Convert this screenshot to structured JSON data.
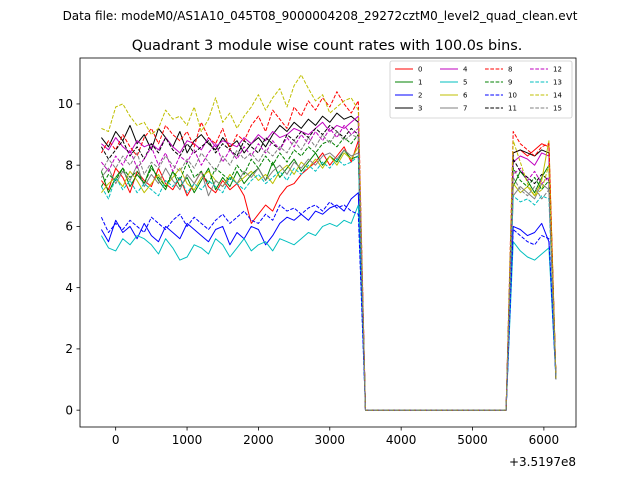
{
  "suptitle": "Data file: modeM0/AS1A10_045T08_9000004208_29272cztM0_level2_quad_clean.evt",
  "chart_data": {
    "type": "line",
    "title": "Quadrant 3 module wise count rates with 100.0s bins.",
    "xlabel": "",
    "ylabel": "",
    "x_offset_label": "+3.5197e8",
    "xlim": [
      -500,
      6450
    ],
    "ylim": [
      -0.55,
      11.5
    ],
    "xticks": [
      0,
      1000,
      2000,
      3000,
      4000,
      5000,
      6000
    ],
    "xtick_labels": [
      "0",
      "1000",
      "2000",
      "3000",
      "4000",
      "5000",
      "6000"
    ],
    "yticks": [
      0,
      2,
      4,
      6,
      8,
      10
    ],
    "ytick_labels": [
      "0",
      "2",
      "4",
      "6",
      "8",
      "10"
    ],
    "legend_position": "top-right",
    "legend_columns": 4,
    "segments": [
      {
        "start": -200,
        "step": 100,
        "count": 37
      },
      {
        "start": 5570,
        "step": 100,
        "count": 6
      }
    ],
    "gap_level": 0,
    "series": [
      {
        "name": "0",
        "color": "#ff0000",
        "dash": false,
        "first": [
          7.5,
          7.2,
          7.9,
          7.6,
          7.1,
          7.8,
          7.5,
          7.3,
          7.9,
          7.4,
          7.2,
          7.6,
          7.0,
          7.4,
          7.8,
          7.3,
          7.1,
          7.5,
          7.2,
          7.4,
          7.0,
          6.1,
          6.4,
          6.7,
          6.5,
          7.0,
          7.3,
          7.4,
          7.7,
          7.9,
          8.1,
          8.4,
          8.0,
          8.3,
          8.6,
          8.1,
          8.8
        ],
        "second": [
          8.4,
          8.5,
          8.3,
          8.5,
          8.7,
          8.6
        ]
      },
      {
        "name": "1",
        "color": "#008000",
        "dash": false,
        "first": [
          7.8,
          7.1,
          7.6,
          7.9,
          7.3,
          7.7,
          7.4,
          8.0,
          7.5,
          7.2,
          7.8,
          7.3,
          7.6,
          7.1,
          7.5,
          7.9,
          7.2,
          7.6,
          7.3,
          7.8,
          7.4,
          7.7,
          7.9,
          7.5,
          8.1,
          7.6,
          7.9,
          8.2,
          7.8,
          8.1,
          8.4,
          8.0,
          8.3,
          8.1,
          8.5,
          8.2,
          8.3
        ],
        "second": [
          7.3,
          7.8,
          7.5,
          7.1,
          7.6,
          8.0
        ]
      },
      {
        "name": "2",
        "color": "#0000ff",
        "dash": false,
        "first": [
          5.9,
          5.5,
          6.2,
          5.8,
          6.0,
          5.6,
          6.1,
          5.7,
          5.5,
          6.0,
          5.8,
          5.6,
          6.1,
          5.9,
          5.7,
          5.5,
          5.9,
          6.0,
          5.4,
          5.8,
          5.6,
          6.0,
          5.9,
          5.4,
          5.7,
          6.1,
          6.3,
          6.2,
          6.4,
          6.2,
          6.5,
          6.4,
          6.6,
          6.7,
          6.5,
          6.9,
          7.1
        ],
        "second": [
          6.0,
          5.9,
          5.7,
          5.8,
          6.1,
          5.5
        ]
      },
      {
        "name": "3",
        "color": "#000000",
        "dash": false,
        "first": [
          8.9,
          8.6,
          9.1,
          8.8,
          9.3,
          8.7,
          9.0,
          8.5,
          9.2,
          8.9,
          8.6,
          9.1,
          8.4,
          8.8,
          9.0,
          8.7,
          8.5,
          8.9,
          8.6,
          8.8,
          8.4,
          8.7,
          8.9,
          8.6,
          9.0,
          9.3,
          9.1,
          9.4,
          9.2,
          9.5,
          9.3,
          9.6,
          9.4,
          9.7,
          9.5,
          9.6,
          9.4
        ],
        "second": [
          8.4,
          8.5,
          8.4,
          8.3,
          8.5,
          8.4
        ]
      },
      {
        "name": "4",
        "color": "#bf00bf",
        "dash": false,
        "first": [
          8.7,
          8.5,
          8.9,
          8.6,
          8.4,
          8.8,
          8.6,
          8.7,
          8.5,
          8.9,
          8.6,
          8.4,
          8.8,
          8.7,
          8.5,
          8.9,
          8.6,
          8.8,
          8.7,
          8.6,
          8.9,
          8.7,
          9.0,
          8.8,
          9.1,
          8.9,
          9.0,
          9.2,
          9.1,
          9.0,
          9.2,
          9.4,
          9.1,
          9.3,
          9.2,
          9.4,
          9.6
        ],
        "second": [
          8.1,
          8.3,
          8.2,
          8.0,
          8.4,
          8.3
        ]
      },
      {
        "name": "5",
        "color": "#00bfbf",
        "dash": false,
        "first": [
          5.7,
          5.3,
          5.2,
          5.6,
          5.4,
          5.7,
          5.6,
          5.4,
          5.1,
          5.6,
          5.3,
          4.9,
          5.0,
          5.4,
          5.3,
          5.1,
          5.6,
          5.4,
          5.0,
          5.3,
          5.6,
          5.2,
          5.4,
          5.5,
          5.2,
          5.6,
          5.5,
          5.4,
          5.6,
          5.8,
          5.7,
          6.0,
          6.1,
          6.0,
          6.2,
          6.1,
          6.7
        ],
        "second": [
          5.5,
          5.2,
          5.0,
          4.9,
          5.1,
          5.3
        ]
      },
      {
        "name": "6",
        "color": "#bfbf00",
        "dash": false,
        "first": [
          7.1,
          7.4,
          7.6,
          7.3,
          7.8,
          7.5,
          7.1,
          7.4,
          7.7,
          7.3,
          7.6,
          7.9,
          7.4,
          7.2,
          7.6,
          7.8,
          7.5,
          7.3,
          7.7,
          7.4,
          7.6,
          7.8,
          7.5,
          7.7,
          7.4,
          7.8,
          8.0,
          7.7,
          8.1,
          7.9,
          8.2,
          7.9,
          8.3,
          8.0,
          8.4,
          8.2,
          8.6
        ],
        "second": [
          7.4,
          7.1,
          7.3,
          7.0,
          7.5,
          8.8
        ]
      },
      {
        "name": "7",
        "color": "#808080",
        "dash": false,
        "first": [
          7.6,
          7.9,
          7.4,
          7.8,
          7.5,
          8.0,
          7.3,
          7.7,
          7.4,
          7.9,
          7.5,
          7.2,
          7.7,
          7.4,
          7.8,
          7.0,
          7.5,
          7.3,
          7.6,
          7.4,
          7.8,
          7.6,
          7.9,
          7.5,
          7.8,
          8.0,
          7.7,
          8.1,
          7.9,
          8.2,
          8.0,
          8.3,
          8.4,
          8.2,
          8.5,
          8.3,
          8.4
        ],
        "second": [
          7.0,
          7.3,
          7.1,
          6.9,
          7.4,
          7.2
        ]
      },
      {
        "name": "8",
        "color": "#ff0000",
        "dash": true,
        "first": [
          8.4,
          8.8,
          8.5,
          9.0,
          8.6,
          8.3,
          8.9,
          9.2,
          8.7,
          9.3,
          9.0,
          8.8,
          9.1,
          8.6,
          9.4,
          8.9,
          8.7,
          9.2,
          8.5,
          9.0,
          8.8,
          9.3,
          9.6,
          9.1,
          9.8,
          9.5,
          9.2,
          9.9,
          9.6,
          10.1,
          9.8,
          10.2,
          9.9,
          10.4,
          10.0,
          9.7,
          10.1
        ],
        "second": [
          9.1,
          8.7,
          8.5,
          8.3,
          8.6,
          8.7
        ]
      },
      {
        "name": "9",
        "color": "#008000",
        "dash": true,
        "first": [
          7.3,
          7.7,
          7.5,
          7.9,
          7.6,
          7.8,
          7.4,
          7.9,
          7.6,
          7.3,
          7.8,
          7.5,
          8.1,
          7.6,
          7.8,
          7.4,
          7.9,
          7.7,
          7.5,
          8.0,
          7.7,
          8.2,
          7.9,
          8.3,
          8.0,
          8.4,
          8.1,
          8.5,
          8.3,
          8.6,
          8.4,
          8.7,
          8.8,
          8.6,
          8.9,
          8.7,
          9.0
        ],
        "second": [
          7.9,
          7.5,
          7.3,
          7.6,
          7.2,
          7.5
        ]
      },
      {
        "name": "10",
        "color": "#0000ff",
        "dash": true,
        "first": [
          6.3,
          5.8,
          6.1,
          5.9,
          6.2,
          6.0,
          5.8,
          6.3,
          6.1,
          5.9,
          6.2,
          6.4,
          6.0,
          6.3,
          6.1,
          5.9,
          6.2,
          6.4,
          6.1,
          6.3,
          6.5,
          6.2,
          6.1,
          6.4,
          6.2,
          6.7,
          6.5,
          6.6,
          6.4,
          6.6,
          6.7,
          6.5,
          6.8,
          6.6,
          6.7,
          6.5,
          6.4
        ],
        "second": [
          5.9,
          5.7,
          5.5,
          5.4,
          5.7,
          5.6
        ]
      },
      {
        "name": "11",
        "color": "#000000",
        "dash": true,
        "first": [
          8.6,
          8.2,
          8.5,
          8.8,
          8.3,
          8.6,
          8.2,
          8.7,
          8.4,
          8.9,
          8.5,
          8.3,
          8.7,
          8.4,
          8.6,
          8.8,
          8.4,
          8.7,
          8.5,
          8.3,
          8.8,
          8.6,
          8.4,
          8.9,
          8.7,
          8.5,
          9.0,
          8.8,
          9.1,
          8.9,
          9.2,
          9.0,
          9.3,
          9.1,
          8.9,
          9.2,
          9.0
        ],
        "second": [
          8.2,
          7.8,
          7.6,
          7.4,
          7.7,
          7.5
        ]
      },
      {
        "name": "12",
        "color": "#bf00bf",
        "dash": true,
        "first": [
          8.1,
          7.8,
          8.3,
          8.0,
          8.5,
          7.9,
          8.2,
          8.6,
          8.0,
          8.4,
          7.8,
          8.3,
          8.1,
          8.5,
          8.0,
          8.4,
          8.7,
          8.1,
          8.5,
          8.2,
          8.6,
          8.3,
          8.7,
          8.4,
          8.8,
          8.5,
          8.9,
          8.6,
          9.0,
          8.7,
          9.1,
          8.8,
          9.2,
          8.9,
          9.3,
          9.0,
          9.2
        ],
        "second": [
          7.7,
          7.9,
          7.5,
          7.8,
          7.4,
          7.6
        ]
      },
      {
        "name": "13",
        "color": "#00bfbf",
        "dash": true,
        "first": [
          7.3,
          6.9,
          7.6,
          7.2,
          7.5,
          7.1,
          7.4,
          7.2,
          7.0,
          7.5,
          7.3,
          7.6,
          7.1,
          7.4,
          7.2,
          7.5,
          7.3,
          7.1,
          7.6,
          7.4,
          7.2,
          7.5,
          7.7,
          7.4,
          7.6,
          7.8,
          7.5,
          7.9,
          7.7,
          8.0,
          7.8,
          8.1,
          7.9,
          8.2,
          8.0,
          8.1,
          8.3
        ],
        "second": [
          7.0,
          6.8,
          6.9,
          6.7,
          7.0,
          6.9
        ]
      },
      {
        "name": "14",
        "color": "#bfbf00",
        "dash": true,
        "first": [
          9.2,
          9.1,
          9.9,
          10.0,
          9.6,
          9.3,
          9.4,
          9.0,
          9.2,
          9.8,
          9.5,
          9.6,
          9.3,
          9.9,
          9.1,
          9.5,
          10.2,
          9.4,
          9.7,
          9.2,
          9.6,
          9.9,
          10.3,
          9.8,
          10.2,
          10.5,
          9.9,
          10.6,
          10.95,
          10.5,
          10.1,
          10.3,
          9.7,
          9.9,
          10.1,
          10.2,
          9.8
        ],
        "second": [
          8.8,
          8.1,
          7.4,
          7.0,
          7.2,
          8.0
        ]
      },
      {
        "name": "15",
        "color": "#808080",
        "dash": true,
        "first": [
          7.8,
          8.2,
          7.9,
          8.3,
          8.0,
          8.4,
          7.7,
          8.1,
          7.9,
          8.3,
          8.0,
          7.8,
          8.2,
          7.9,
          8.4,
          8.1,
          7.8,
          8.3,
          8.0,
          8.5,
          8.2,
          8.4,
          8.1,
          8.5,
          8.3,
          8.6,
          8.4,
          8.8,
          8.5,
          8.9,
          8.6,
          9.0,
          8.7,
          9.1,
          8.8,
          9.0,
          8.9
        ],
        "second": [
          7.6,
          7.2,
          7.0,
          7.3,
          6.9,
          7.2
        ]
      }
    ]
  }
}
